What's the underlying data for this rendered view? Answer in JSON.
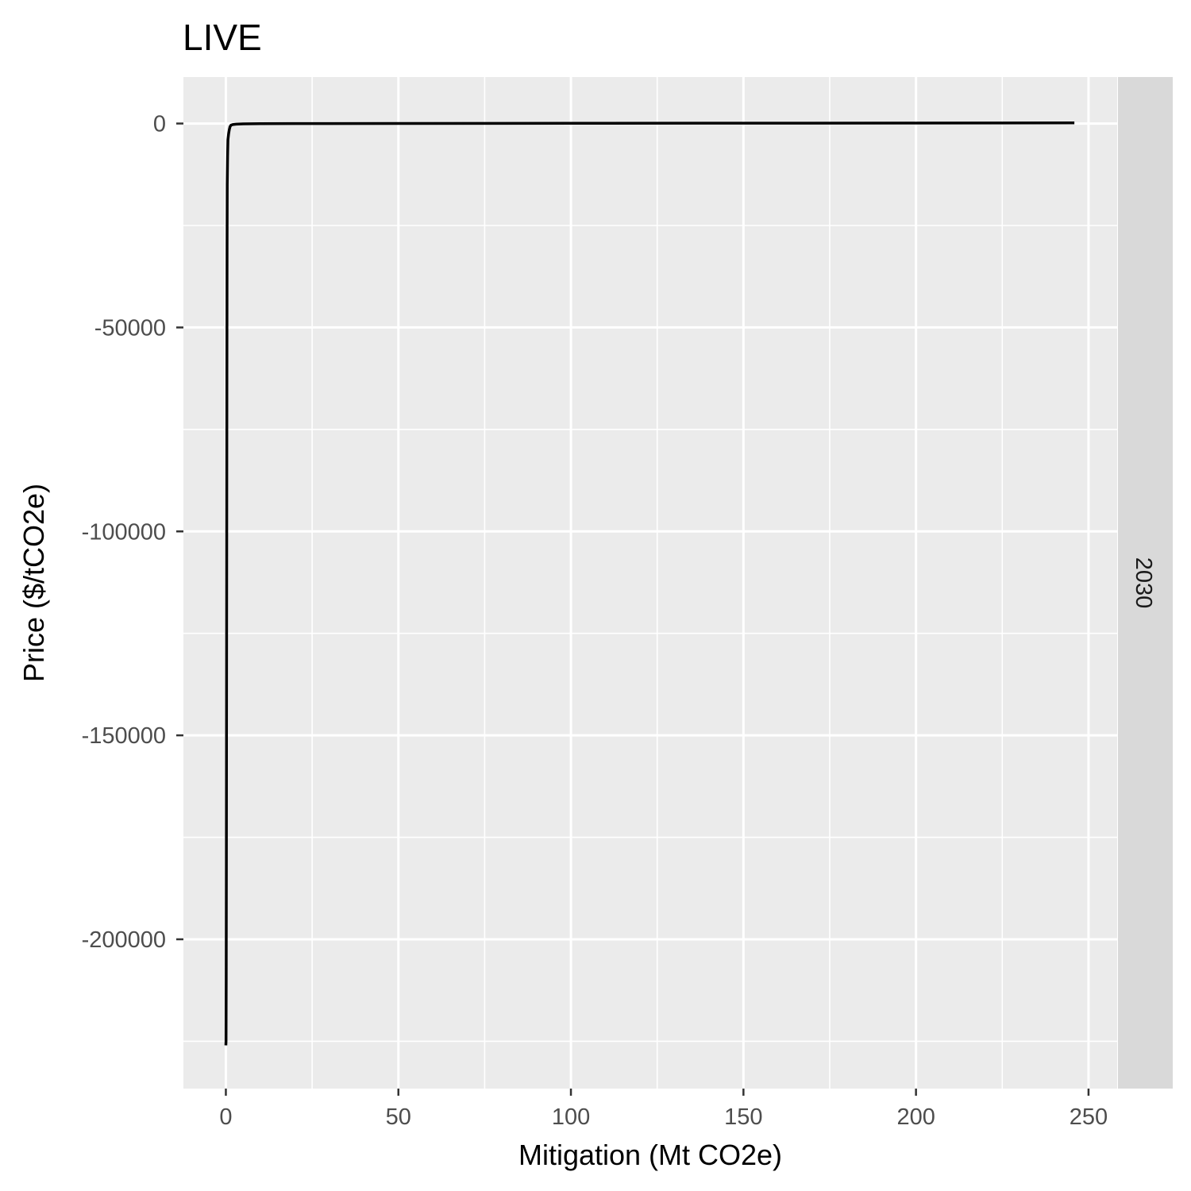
{
  "chart_data": {
    "type": "line",
    "title": "LIVE",
    "xlabel": "Mitigation (Mt CO2e)",
    "ylabel": "Price ($/tCO2e)",
    "facet_label": "2030",
    "xlim": [
      -12.3,
      258.3
    ],
    "ylim": [
      -236600,
      11400
    ],
    "x_ticks": [
      0,
      50,
      100,
      150,
      200,
      250
    ],
    "x_tick_labels": [
      "0",
      "50",
      "100",
      "150",
      "200",
      "250"
    ],
    "x_minor": [
      25,
      75,
      125,
      175,
      225
    ],
    "y_ticks": [
      0,
      -50000,
      -100000,
      -150000,
      -200000
    ],
    "y_tick_labels": [
      "0",
      "-50000",
      "-100000",
      "-150000",
      "-200000"
    ],
    "y_minor": [
      -25000,
      -75000,
      -125000,
      -175000,
      -225000
    ],
    "grid": true,
    "colors": {
      "panel_bg": "#ebebeb",
      "strip_bg": "#d9d9d9",
      "grid": "#ffffff",
      "line": "#000000",
      "tick_label": "#4d4d4d"
    },
    "series": [
      {
        "x": [
          0.0,
          0.05,
          0.1,
          0.15,
          0.2,
          0.25,
          0.3,
          0.35,
          0.4,
          0.5,
          0.6,
          0.8,
          1.0,
          1.2,
          1.5,
          2.0,
          3.0,
          5.0,
          10.0,
          20.0,
          30.0,
          50.0,
          100.0,
          150.0,
          200.0,
          245.9
        ],
        "y": [
          -226000,
          -225000,
          -210000,
          -180000,
          -140000,
          -100000,
          -60000,
          -30000,
          -15000,
          -8000,
          -4000,
          -2500,
          -1500,
          -800,
          -400,
          -250,
          -150,
          -80,
          -40,
          -20,
          -10,
          0,
          50,
          80,
          120,
          150
        ]
      }
    ]
  }
}
